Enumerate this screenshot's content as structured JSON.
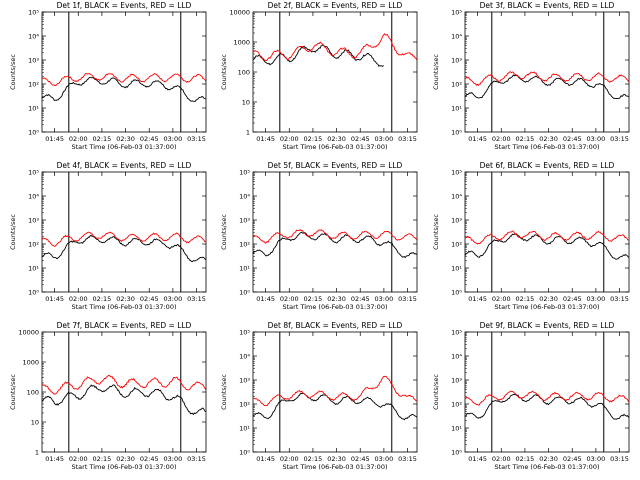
{
  "chart_data": [
    {
      "type": "line",
      "title": "Det 1f, BLACK = Events, RED = LLD",
      "ylabel": "Counts/sec",
      "xlabel": "Start Time (06-Feb-03 01:37:00)",
      "yscale": "log",
      "yticks": [
        "10⁰",
        "10¹",
        "10²",
        "10³",
        "10⁴",
        "10⁵"
      ],
      "ylim": [
        1,
        100000
      ],
      "x": [
        "01:45",
        "02:00",
        "02:15",
        "02:30",
        "02:45",
        "03:00",
        "03:15"
      ],
      "series": [
        {
          "name": "BLACK = Events",
          "color": "#000000",
          "values": [
            25,
            130,
            140,
            100,
            110,
            80,
            20
          ]
        },
        {
          "name": "RED = LLD",
          "color": "#ff0000",
          "values": [
            120,
            190,
            210,
            170,
            180,
            190,
            170
          ]
        }
      ]
    },
    {
      "type": "line",
      "title": "Det 2f, BLACK = Events, RED = LLD",
      "ylabel": "Counts/sec",
      "xlabel": "Start Time (06-Feb-03 01:37:00)",
      "yscale": "log",
      "yticks": [
        "1",
        "10",
        "100",
        "1000",
        "10000"
      ],
      "ylim": [
        1,
        10000
      ],
      "x": [
        "01:45",
        "02:00",
        "02:15",
        "02:30",
        "02:45",
        "03:00",
        "03:15"
      ],
      "series": [
        {
          "name": "BLACK = Events",
          "color": "#000000",
          "values": [
            250,
            300,
            700,
            400,
            350,
            200,
            null
          ]
        },
        {
          "name": "RED = LLD",
          "color": "#ff0000",
          "values": [
            350,
            380,
            800,
            450,
            420,
            1500,
            300
          ]
        }
      ]
    },
    {
      "type": "line",
      "title": "Det 3f, BLACK = Events, RED = LLD",
      "ylabel": "Counts/sec",
      "xlabel": "Start Time (06-Feb-03 01:37:00)",
      "yscale": "log",
      "yticks": [
        "10⁰",
        "10¹",
        "10²",
        "10³",
        "10⁴",
        "10⁵"
      ],
      "ylim": [
        1,
        100000
      ],
      "x": [
        "01:45",
        "02:00",
        "02:15",
        "02:30",
        "02:45",
        "03:00",
        "03:15"
      ],
      "series": [
        {
          "name": "BLACK = Events",
          "color": "#000000",
          "values": [
            30,
            150,
            180,
            120,
            130,
            100,
            25
          ]
        },
        {
          "name": "RED = LLD",
          "color": "#ff0000",
          "values": [
            130,
            200,
            250,
            180,
            190,
            200,
            160
          ]
        }
      ]
    },
    {
      "type": "line",
      "title": "Det 4f, BLACK = Events, RED = LLD",
      "ylabel": "Counts/sec",
      "xlabel": "Start Time (06-Feb-03 01:37:00)",
      "yscale": "log",
      "yticks": [
        "10⁰",
        "10¹",
        "10²",
        "10³",
        "10⁴",
        "10⁵"
      ],
      "ylim": [
        1,
        100000
      ],
      "x": [
        "01:45",
        "02:00",
        "02:15",
        "02:30",
        "02:45",
        "03:00",
        "03:15"
      ],
      "series": [
        {
          "name": "BLACK = Events",
          "color": "#000000",
          "values": [
            30,
            150,
            160,
            120,
            130,
            90,
            20
          ]
        },
        {
          "name": "RED = LLD",
          "color": "#ff0000",
          "values": [
            120,
            200,
            240,
            180,
            190,
            200,
            150
          ]
        }
      ]
    },
    {
      "type": "line",
      "title": "Det 5f, BLACK = Events, RED = LLD",
      "ylabel": "Counts/sec",
      "xlabel": "Start Time (06-Feb-03 01:37:00)",
      "yscale": "log",
      "yticks": [
        "10⁰",
        "10¹",
        "10²",
        "10³",
        "10⁴",
        "10⁵"
      ],
      "ylim": [
        1,
        100000
      ],
      "x": [
        "01:45",
        "02:00",
        "02:15",
        "02:30",
        "02:45",
        "03:00",
        "03:15"
      ],
      "series": [
        {
          "name": "BLACK = Events",
          "color": "#000000",
          "values": [
            40,
            200,
            220,
            160,
            170,
            120,
            30
          ]
        },
        {
          "name": "RED = LLD",
          "color": "#ff0000",
          "values": [
            160,
            260,
            300,
            220,
            230,
            260,
            180
          ]
        }
      ]
    },
    {
      "type": "line",
      "title": "Det 6f, BLACK = Events, RED = LLD",
      "ylabel": "Counts/sec",
      "xlabel": "Start Time (06-Feb-03 01:37:00)",
      "yscale": "log",
      "yticks": [
        "10⁰",
        "10¹",
        "10²",
        "10³",
        "10⁴",
        "10⁵"
      ],
      "ylim": [
        1,
        100000
      ],
      "x": [
        "01:45",
        "02:00",
        "02:15",
        "02:30",
        "02:45",
        "03:00",
        "03:15"
      ],
      "series": [
        {
          "name": "BLACK = Events",
          "color": "#000000",
          "values": [
            35,
            170,
            200,
            140,
            150,
            110,
            25
          ]
        },
        {
          "name": "RED = LLD",
          "color": "#ff0000",
          "values": [
            140,
            220,
            260,
            200,
            210,
            230,
            170
          ]
        }
      ]
    },
    {
      "type": "line",
      "title": "Det 7f, BLACK = Events, RED = LLD",
      "ylabel": "Counts/sec",
      "xlabel": "Start Time (06-Feb-03 01:37:00)",
      "yscale": "log",
      "yticks": [
        "1",
        "10",
        "100",
        "1000",
        "10000"
      ],
      "ylim": [
        1,
        10000
      ],
      "x": [
        "01:45",
        "02:00",
        "02:15",
        "02:30",
        "02:45",
        "03:00",
        "03:15"
      ],
      "series": [
        {
          "name": "BLACK = Events",
          "color": "#000000",
          "values": [
            50,
            80,
            150,
            90,
            100,
            70,
            20
          ]
        },
        {
          "name": "RED = LLD",
          "color": "#ff0000",
          "values": [
            120,
            180,
            280,
            190,
            200,
            220,
            150
          ]
        }
      ]
    },
    {
      "type": "line",
      "title": "Det 8f, BLACK = Events, RED = LLD",
      "ylabel": "Counts/sec",
      "xlabel": "Start Time (06-Feb-03 01:37:00)",
      "yscale": "log",
      "yticks": [
        "10⁰",
        "10¹",
        "10²",
        "10³",
        "10⁴",
        "10⁵"
      ],
      "ylim": [
        1,
        100000
      ],
      "x": [
        "01:45",
        "02:00",
        "02:15",
        "02:30",
        "02:45",
        "03:00",
        "03:15"
      ],
      "series": [
        {
          "name": "BLACK = Events",
          "color": "#000000",
          "values": [
            30,
            180,
            200,
            140,
            150,
            100,
            25
          ]
        },
        {
          "name": "RED = LLD",
          "color": "#ff0000",
          "values": [
            120,
            230,
            260,
            200,
            210,
            1200,
            160
          ]
        }
      ]
    },
    {
      "type": "line",
      "title": "Det 9f, BLACK = Events, RED = LLD",
      "ylabel": "Counts/sec",
      "xlabel": "Start Time (06-Feb-03 01:37:00)",
      "yscale": "log",
      "yticks": [
        "10⁰",
        "10¹",
        "10²",
        "10³",
        "10⁴",
        "10⁵"
      ],
      "ylim": [
        1,
        100000
      ],
      "x": [
        "01:45",
        "02:00",
        "02:15",
        "02:30",
        "02:45",
        "03:00",
        "03:15"
      ],
      "series": [
        {
          "name": "BLACK = Events",
          "color": "#000000",
          "values": [
            30,
            170,
            190,
            140,
            150,
            100,
            25
          ]
        },
        {
          "name": "RED = LLD",
          "color": "#ff0000",
          "values": [
            130,
            220,
            250,
            200,
            210,
            220,
            160
          ]
        }
      ]
    }
  ]
}
